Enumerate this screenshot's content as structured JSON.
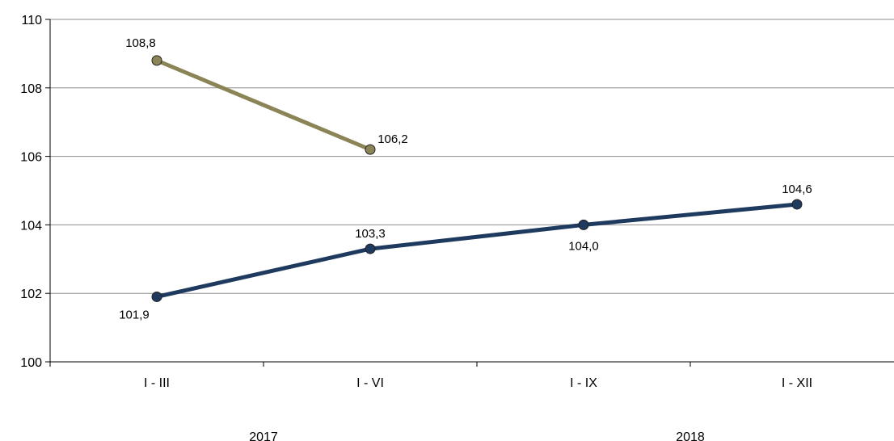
{
  "chart_data": {
    "type": "line",
    "categories": [
      "I - III",
      "I - VI",
      "I - IX",
      "I - XII"
    ],
    "groups": [
      {
        "label": "2017",
        "categories": [
          "I - III",
          "I - VI"
        ]
      },
      {
        "label": "2018",
        "categories": [
          "I - IX",
          "I - XII"
        ]
      }
    ],
    "yticks": [
      "100",
      "102",
      "104",
      "106",
      "108",
      "110"
    ],
    "ylim": [
      100,
      110
    ],
    "grid": true,
    "series": [
      {
        "color": "#8B8456",
        "values": [
          108.8,
          106.2,
          null,
          null
        ],
        "labels": [
          "108,8",
          "106,2",
          "",
          ""
        ],
        "label_pos": [
          "above-left",
          "above-right",
          "",
          ""
        ]
      },
      {
        "color": "#1F3A5F",
        "values": [
          101.9,
          103.3,
          104.0,
          104.6
        ],
        "labels": [
          "101,9",
          "103,3",
          "104,0",
          "104,6"
        ],
        "label_pos": [
          "below-left",
          "above",
          "below",
          "above"
        ]
      }
    ]
  }
}
